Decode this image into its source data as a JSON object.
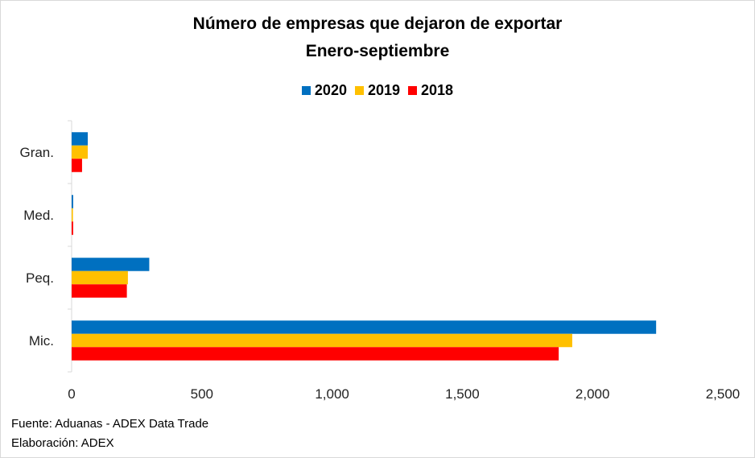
{
  "chart_data": {
    "type": "bar",
    "orientation": "horizontal",
    "title": "Número de empresas que dejaron de exportar",
    "subtitle": "Enero-septiembre",
    "categories": [
      "Gran.",
      "Med.",
      "Peq.",
      "Mic."
    ],
    "series": [
      {
        "name": "2020",
        "color": "#0070c0",
        "values": [
          62,
          6,
          298,
          2244
        ]
      },
      {
        "name": "2019",
        "color": "#ffc000",
        "values": [
          62,
          5,
          216,
          1922
        ]
      },
      {
        "name": "2018",
        "color": "#ff0000",
        "values": [
          40,
          6,
          212,
          1870
        ]
      }
    ],
    "xlim": [
      0,
      2500
    ],
    "x_ticks": [
      "0",
      "500",
      "1,000",
      "1,500",
      "2,000",
      "2,500"
    ],
    "x_tick_values": [
      0,
      500,
      1000,
      1500,
      2000,
      2500
    ],
    "legend_position": "top",
    "grid": false
  },
  "footer": {
    "source": "Fuente: Aduanas - ADEX Data Trade",
    "credit": "Elaboración: ADEX"
  }
}
